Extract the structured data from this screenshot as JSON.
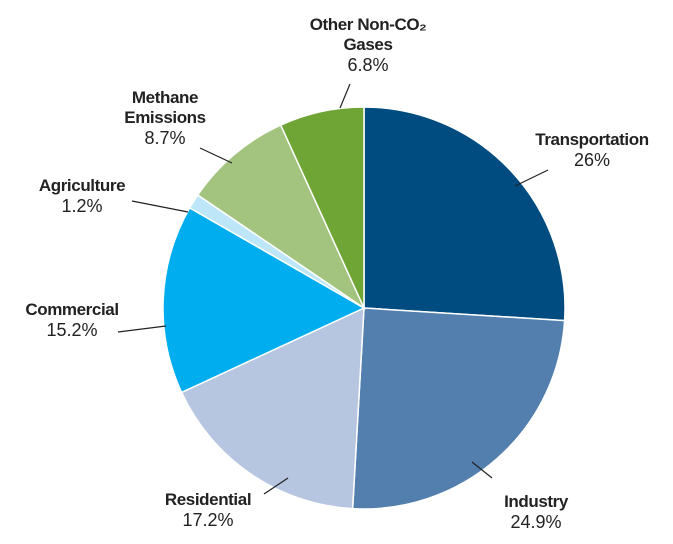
{
  "chart_data": {
    "type": "pie",
    "categories": [
      "Transportation",
      "Industry",
      "Residential",
      "Commercial",
      "Agriculture",
      "Methane Emissions",
      "Other Non-CO₂ Gases"
    ],
    "values": [
      26,
      24.9,
      17.2,
      15.2,
      1.2,
      8.7,
      6.8
    ],
    "value_labels": [
      "26%",
      "24.9%",
      "17.2%",
      "15.2%",
      "1.2%",
      "8.7%",
      "6.8%"
    ],
    "colors": [
      "#004b7f",
      "#527fae",
      "#b7c6e0",
      "#00aeef",
      "#bde6f8",
      "#a3c47f",
      "#6ea535"
    ]
  }
}
